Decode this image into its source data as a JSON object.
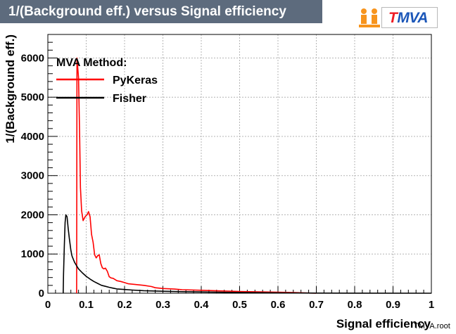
{
  "title": "1/(Background eff.) versus Signal efficiency",
  "logo": {
    "first": "T",
    "rest": "MVA"
  },
  "footer": "TMVA.root",
  "chart_data": {
    "type": "line",
    "title": "1/(Background eff.) versus Signal efficiency",
    "xlabel": "Signal efficiency",
    "ylabel": "1/(Background eff.)",
    "xlim": [
      0,
      1
    ],
    "ylim": [
      0,
      6600
    ],
    "x_ticks": [
      "0",
      "0.1",
      "0.2",
      "0.3",
      "0.4",
      "0.5",
      "0.6",
      "0.7",
      "0.8",
      "0.9",
      "1"
    ],
    "y_ticks": [
      "0",
      "1000",
      "2000",
      "3000",
      "4000",
      "5000",
      "6000"
    ],
    "grid": true,
    "legend": {
      "title": "MVA Method:",
      "position": "top-left"
    },
    "series": [
      {
        "name": "PyKeras",
        "color": "#ff0000",
        "points": [
          [
            0.075,
            0
          ],
          [
            0.076,
            6000
          ],
          [
            0.08,
            5500
          ],
          [
            0.083,
            4000
          ],
          [
            0.085,
            2700
          ],
          [
            0.088,
            2100
          ],
          [
            0.092,
            1850
          ],
          [
            0.097,
            1950
          ],
          [
            0.102,
            2000
          ],
          [
            0.106,
            2080
          ],
          [
            0.11,
            1950
          ],
          [
            0.114,
            1500
          ],
          [
            0.118,
            1300
          ],
          [
            0.122,
            980
          ],
          [
            0.126,
            900
          ],
          [
            0.13,
            960
          ],
          [
            0.134,
            980
          ],
          [
            0.138,
            760
          ],
          [
            0.142,
            650
          ],
          [
            0.146,
            620
          ],
          [
            0.15,
            640
          ],
          [
            0.155,
            560
          ],
          [
            0.16,
            420
          ],
          [
            0.165,
            390
          ],
          [
            0.17,
            380
          ],
          [
            0.18,
            320
          ],
          [
            0.19,
            300
          ],
          [
            0.2,
            270
          ],
          [
            0.21,
            240
          ],
          [
            0.23,
            220
          ],
          [
            0.25,
            200
          ],
          [
            0.27,
            170
          ],
          [
            0.28,
            140
          ],
          [
            0.3,
            120
          ],
          [
            0.33,
            105
          ],
          [
            0.35,
            90
          ],
          [
            0.4,
            75
          ],
          [
            0.45,
            60
          ],
          [
            0.5,
            45
          ],
          [
            0.55,
            35
          ],
          [
            0.6,
            25
          ],
          [
            0.65,
            15
          ],
          [
            0.67,
            8
          ],
          [
            0.7,
            0
          ]
        ]
      },
      {
        "name": "Fisher",
        "color": "#000000",
        "points": [
          [
            0.04,
            0
          ],
          [
            0.041,
            500
          ],
          [
            0.043,
            1200
          ],
          [
            0.045,
            1800
          ],
          [
            0.047,
            2000
          ],
          [
            0.05,
            1950
          ],
          [
            0.053,
            1650
          ],
          [
            0.056,
            1400
          ],
          [
            0.06,
            1100
          ],
          [
            0.063,
            950
          ],
          [
            0.067,
            850
          ],
          [
            0.07,
            780
          ],
          [
            0.075,
            700
          ],
          [
            0.08,
            620
          ],
          [
            0.09,
            520
          ],
          [
            0.1,
            430
          ],
          [
            0.11,
            360
          ],
          [
            0.12,
            300
          ],
          [
            0.13,
            250
          ],
          [
            0.14,
            200
          ],
          [
            0.15,
            175
          ],
          [
            0.16,
            150
          ],
          [
            0.17,
            130
          ],
          [
            0.18,
            110
          ],
          [
            0.2,
            95
          ],
          [
            0.22,
            80
          ],
          [
            0.25,
            65
          ],
          [
            0.3,
            50
          ],
          [
            0.35,
            40
          ],
          [
            0.4,
            32
          ],
          [
            0.45,
            25
          ],
          [
            0.5,
            20
          ],
          [
            0.55,
            15
          ],
          [
            0.6,
            10
          ],
          [
            0.65,
            6
          ],
          [
            0.7,
            3
          ],
          [
            0.8,
            1
          ],
          [
            1.0,
            0
          ]
        ]
      }
    ]
  }
}
